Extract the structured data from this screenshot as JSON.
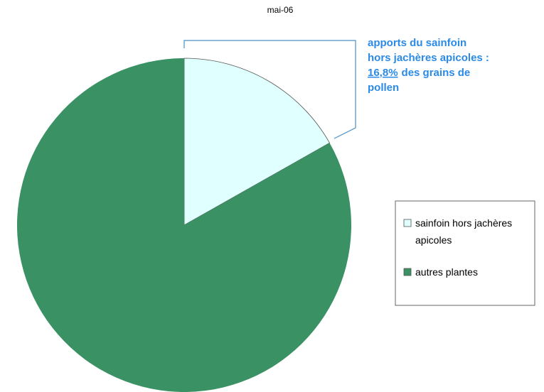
{
  "chart_data": {
    "type": "pie",
    "title": "mai-06",
    "categories": [
      "sainfoin hors jachères apicoles",
      "autres plantes"
    ],
    "values": [
      16.8,
      83.2
    ],
    "value_labels": [
      "16,8%",
      null
    ],
    "colors": [
      "#e0ffff",
      "#3a9163"
    ],
    "annotation": [
      "apports du sainfoin",
      "hors jachères apicoles :",
      "des grains de",
      "pollen"
    ],
    "legend": "right"
  }
}
